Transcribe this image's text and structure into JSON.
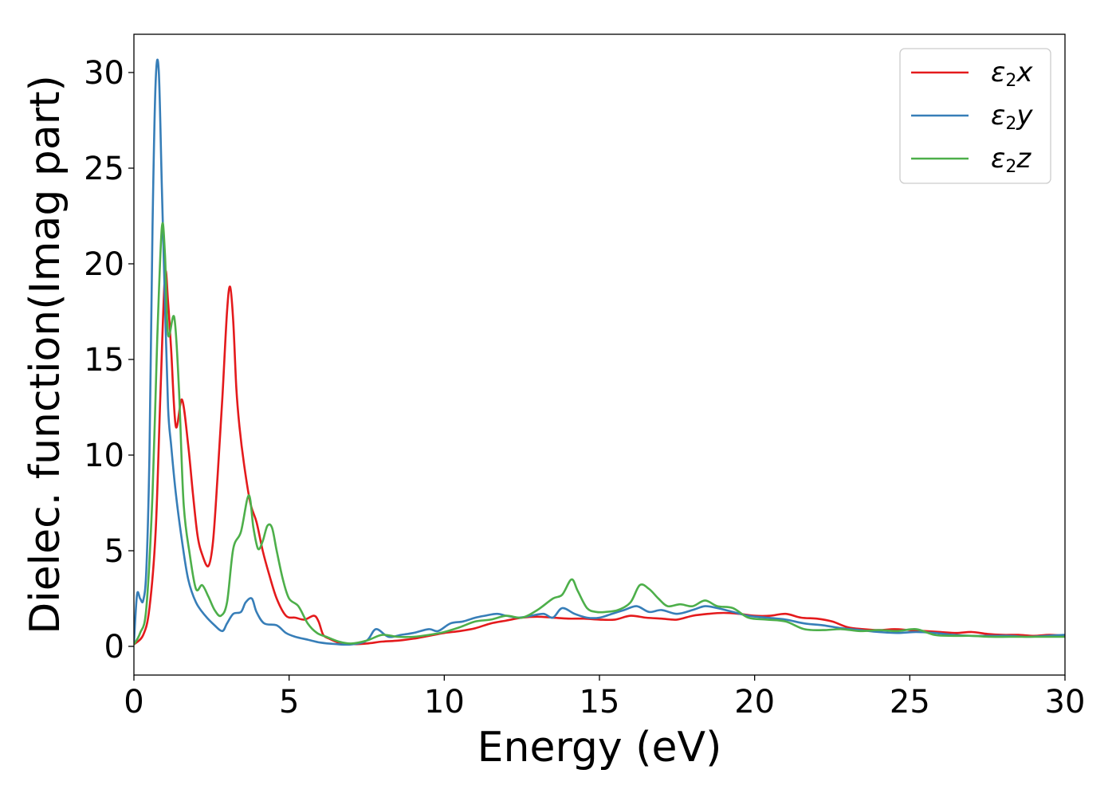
{
  "chart_data": {
    "type": "line",
    "xlabel": "Energy (eV)",
    "ylabel": "Dielec. function(Imag part)",
    "xlim": [
      0,
      30
    ],
    "ylim": [
      -1.5,
      32
    ],
    "xticks": [
      0,
      5,
      10,
      15,
      20,
      25,
      30
    ],
    "yticks": [
      0,
      5,
      10,
      15,
      20,
      25,
      30
    ],
    "grid": false,
    "legend_position": "top-right",
    "series": [
      {
        "name": "ε₂x",
        "label_base": "ε",
        "label_sub": "2",
        "label_var": "x",
        "color": "#e41a1c",
        "x": [
          0,
          0.3,
          0.5,
          0.7,
          0.85,
          1.0,
          1.1,
          1.2,
          1.35,
          1.55,
          1.75,
          1.9,
          2.05,
          2.2,
          2.4,
          2.55,
          2.7,
          2.85,
          3.0,
          3.1,
          3.2,
          3.3,
          3.4,
          3.55,
          3.75,
          3.95,
          4.15,
          4.35,
          4.6,
          4.9,
          5.2,
          5.5,
          5.8,
          5.95,
          6.1,
          6.3,
          6.6,
          7.0,
          7.5,
          8.0,
          8.5,
          9.0,
          9.5,
          10.0,
          10.5,
          11.0,
          11.5,
          12.0,
          12.5,
          13.0,
          13.5,
          14.0,
          14.5,
          15.0,
          15.5,
          16.0,
          16.5,
          17.0,
          17.5,
          18.0,
          18.5,
          19.0,
          19.5,
          20.0,
          20.5,
          21.0,
          21.5,
          22.0,
          22.5,
          23.0,
          23.5,
          24.0,
          24.5,
          25.0,
          25.5,
          26.0,
          26.5,
          27.0,
          27.5,
          28.0,
          28.5,
          29.0,
          29.5,
          30.0
        ],
        "y": [
          0.1,
          0.6,
          2.0,
          6.0,
          13.0,
          19.4,
          18.0,
          15.5,
          11.5,
          12.9,
          10.5,
          8.0,
          5.8,
          4.8,
          4.2,
          5.5,
          9.0,
          13.0,
          17.5,
          18.8,
          17.0,
          13.5,
          11.5,
          9.5,
          7.5,
          6.5,
          5.0,
          3.8,
          2.5,
          1.6,
          1.5,
          1.4,
          1.6,
          1.3,
          0.6,
          0.4,
          0.2,
          0.12,
          0.15,
          0.25,
          0.3,
          0.4,
          0.55,
          0.7,
          0.8,
          0.95,
          1.2,
          1.35,
          1.5,
          1.55,
          1.5,
          1.45,
          1.45,
          1.4,
          1.4,
          1.6,
          1.5,
          1.45,
          1.4,
          1.6,
          1.7,
          1.75,
          1.7,
          1.6,
          1.6,
          1.7,
          1.5,
          1.45,
          1.3,
          1.0,
          0.9,
          0.85,
          0.9,
          0.85,
          0.8,
          0.75,
          0.7,
          0.75,
          0.65,
          0.6,
          0.6,
          0.55,
          0.6,
          0.55
        ]
      },
      {
        "name": "ε₂y",
        "label_base": "ε",
        "label_sub": "2",
        "label_var": "y",
        "color": "#377eb8",
        "x": [
          0,
          0.1,
          0.2,
          0.3,
          0.4,
          0.5,
          0.6,
          0.7,
          0.8,
          0.9,
          1.0,
          1.1,
          1.2,
          1.35,
          1.55,
          1.75,
          2.0,
          2.3,
          2.6,
          2.85,
          3.0,
          3.2,
          3.45,
          3.6,
          3.8,
          3.95,
          4.2,
          4.6,
          4.9,
          5.2,
          5.6,
          6.0,
          6.5,
          7.0,
          7.5,
          7.8,
          8.2,
          8.6,
          9.0,
          9.5,
          9.8,
          10.2,
          10.6,
          11.0,
          11.3,
          11.7,
          12.0,
          12.4,
          12.8,
          13.2,
          13.5,
          13.8,
          14.2,
          14.6,
          15.0,
          15.4,
          15.8,
          16.2,
          16.6,
          17.0,
          17.5,
          18.0,
          18.4,
          18.8,
          19.3,
          19.8,
          20.4,
          21.0,
          21.6,
          22.2,
          22.8,
          23.4,
          24.0,
          24.6,
          25.2,
          25.8,
          26.4,
          27.0,
          27.6,
          28.2,
          28.8,
          29.4,
          30.0
        ],
        "y": [
          0.2,
          2.7,
          2.5,
          2.4,
          4.0,
          10.0,
          22.0,
          29.5,
          30.1,
          24.0,
          18.0,
          12.5,
          10.5,
          8.0,
          5.5,
          3.5,
          2.3,
          1.6,
          1.1,
          0.8,
          1.2,
          1.7,
          1.8,
          2.3,
          2.5,
          1.8,
          1.2,
          1.1,
          0.7,
          0.5,
          0.35,
          0.2,
          0.12,
          0.1,
          0.3,
          0.9,
          0.5,
          0.6,
          0.7,
          0.9,
          0.8,
          1.2,
          1.3,
          1.5,
          1.6,
          1.7,
          1.6,
          1.5,
          1.6,
          1.7,
          1.5,
          2.0,
          1.7,
          1.5,
          1.5,
          1.7,
          1.9,
          2.1,
          1.8,
          1.9,
          1.7,
          1.9,
          2.1,
          2.0,
          1.8,
          1.6,
          1.5,
          1.4,
          1.2,
          1.1,
          0.95,
          0.85,
          0.75,
          0.7,
          0.75,
          0.7,
          0.6,
          0.55,
          0.55,
          0.55,
          0.5,
          0.55,
          0.6
        ]
      },
      {
        "name": "ε₂z",
        "label_base": "ε",
        "label_sub": "2",
        "label_var": "z",
        "color": "#4daf4a",
        "x": [
          0,
          0.2,
          0.4,
          0.6,
          0.75,
          0.9,
          1.0,
          1.1,
          1.3,
          1.45,
          1.6,
          1.8,
          2.0,
          2.2,
          2.4,
          2.6,
          2.8,
          3.0,
          3.2,
          3.45,
          3.7,
          3.85,
          4.0,
          4.15,
          4.3,
          4.45,
          4.6,
          4.8,
          5.0,
          5.3,
          5.6,
          5.9,
          6.2,
          6.6,
          7.0,
          7.5,
          8.0,
          8.5,
          9.0,
          9.5,
          10.0,
          10.5,
          11.0,
          11.5,
          12.0,
          12.5,
          13.0,
          13.5,
          13.8,
          14.1,
          14.3,
          14.6,
          14.9,
          15.2,
          15.6,
          16.0,
          16.3,
          16.6,
          16.9,
          17.2,
          17.6,
          18.0,
          18.4,
          18.8,
          19.3,
          19.8,
          20.4,
          21.0,
          21.6,
          22.2,
          22.8,
          23.4,
          24.0,
          24.6,
          25.2,
          25.8,
          26.4,
          27.0,
          27.6,
          28.2,
          28.8,
          29.4,
          30.0
        ],
        "y": [
          0.1,
          0.7,
          2.0,
          8.0,
          16.0,
          21.9,
          20.5,
          16.3,
          17.2,
          13.5,
          7.5,
          4.8,
          3.0,
          3.2,
          2.6,
          1.9,
          1.6,
          2.3,
          5.1,
          6.0,
          7.9,
          6.2,
          5.1,
          5.5,
          6.3,
          6.2,
          5.0,
          3.5,
          2.5,
          2.1,
          1.2,
          0.7,
          0.5,
          0.25,
          0.15,
          0.3,
          0.6,
          0.5,
          0.5,
          0.6,
          0.75,
          1.0,
          1.3,
          1.4,
          1.6,
          1.5,
          1.9,
          2.5,
          2.7,
          3.5,
          2.9,
          2.0,
          1.8,
          1.8,
          1.9,
          2.3,
          3.2,
          3.0,
          2.5,
          2.1,
          2.2,
          2.1,
          2.4,
          2.1,
          2.0,
          1.5,
          1.4,
          1.3,
          0.9,
          0.85,
          0.9,
          0.8,
          0.85,
          0.8,
          0.9,
          0.6,
          0.55,
          0.55,
          0.5,
          0.5,
          0.5,
          0.5,
          0.5
        ]
      }
    ]
  }
}
